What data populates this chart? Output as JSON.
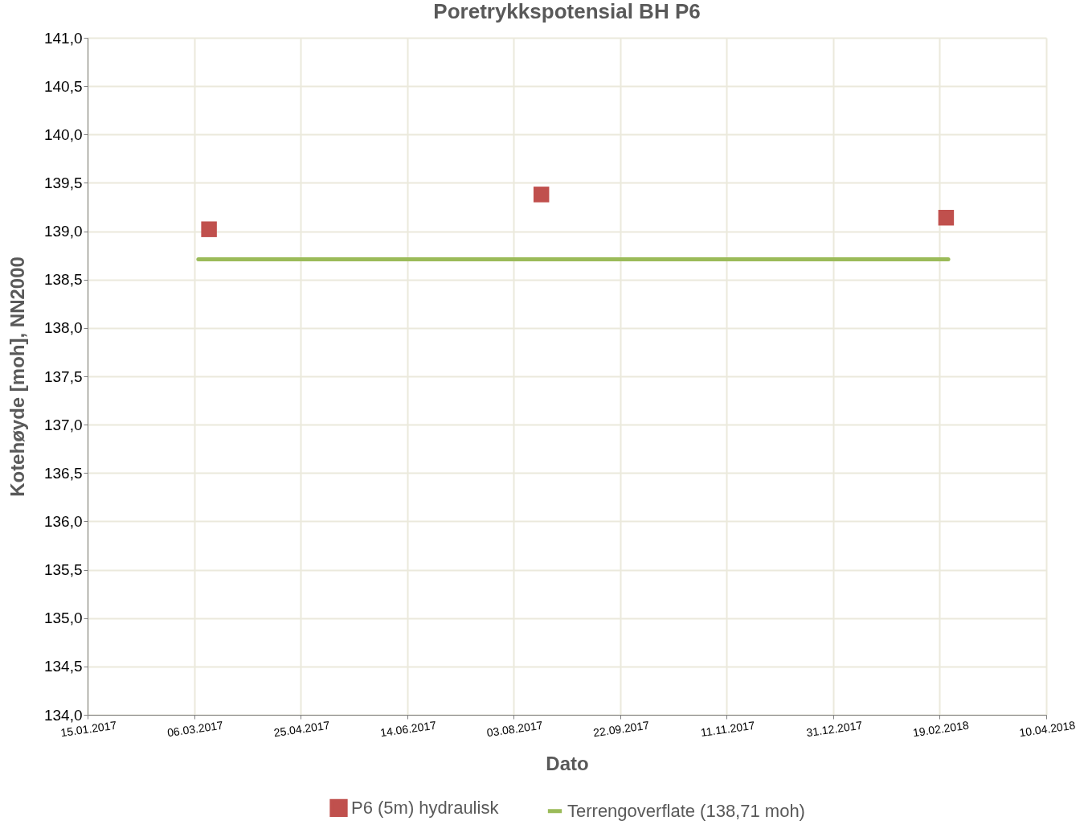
{
  "chart_data": {
    "type": "scatter",
    "title": "Poretrykkspotensial BH P6",
    "xlabel": "Dato",
    "ylabel": "Kotehøyde [moh], NN2000",
    "xlim": [
      "2017-01-15",
      "2018-04-10"
    ],
    "xticks": [
      {
        "value": "2017-01-15",
        "label": "15.01.2017"
      },
      {
        "value": "2017-03-06",
        "label": "06.03.2017"
      },
      {
        "value": "2017-04-25",
        "label": "25.04.2017"
      },
      {
        "value": "2017-06-14",
        "label": "14.06.2017"
      },
      {
        "value": "2017-08-03",
        "label": "03.08.2017"
      },
      {
        "value": "2017-09-22",
        "label": "22.09.2017"
      },
      {
        "value": "2017-11-11",
        "label": "11.11.2017"
      },
      {
        "value": "2017-12-31",
        "label": "31.12.2017"
      },
      {
        "value": "2018-02-19",
        "label": "19.02.2018"
      },
      {
        "value": "2018-04-10",
        "label": "10.04.2018"
      }
    ],
    "ylim": [
      134,
      141
    ],
    "yticks": [
      {
        "value": 134,
        "label": "134,0"
      },
      {
        "value": 134.5,
        "label": "134,5"
      },
      {
        "value": 135,
        "label": "135,0"
      },
      {
        "value": 135.5,
        "label": "135,5"
      },
      {
        "value": 136,
        "label": "136,0"
      },
      {
        "value": 136.5,
        "label": "136,5"
      },
      {
        "value": 137,
        "label": "137,0"
      },
      {
        "value": 137.5,
        "label": "137,5"
      },
      {
        "value": 138,
        "label": "138,0"
      },
      {
        "value": 138.5,
        "label": "138,5"
      },
      {
        "value": 139,
        "label": "139,0"
      },
      {
        "value": 139.5,
        "label": "139,5"
      },
      {
        "value": 140,
        "label": "140,0"
      },
      {
        "value": 140.5,
        "label": "140,5"
      },
      {
        "value": 141,
        "label": "141,0"
      }
    ],
    "grid": true,
    "legend": "bottom",
    "series": [
      {
        "name": "P6 (5m) hydraulisk",
        "marker": "square",
        "color": "#c0504d",
        "x": [
          "2017-03-13",
          "2017-08-16",
          "2018-02-22"
        ],
        "values": [
          139.02,
          139.38,
          139.14
        ]
      },
      {
        "name": "Terrengoverflate (138,71 moh)",
        "type": "line",
        "marker": "none",
        "color": "#9bbb59",
        "x": [
          "2017-03-08",
          "2018-02-23"
        ],
        "values": [
          138.71,
          138.71
        ]
      }
    ]
  }
}
